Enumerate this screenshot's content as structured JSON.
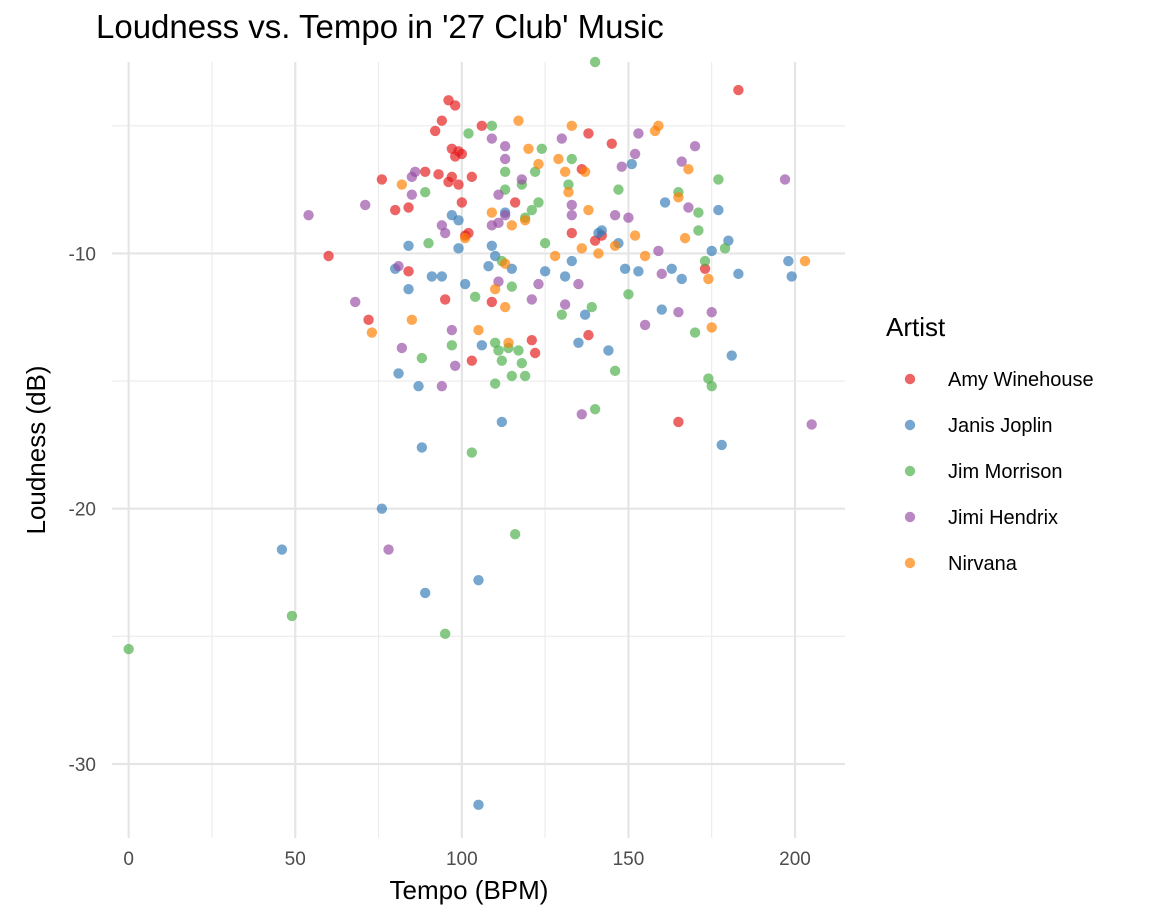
{
  "chart_data": {
    "type": "scatter",
    "title": "Loudness vs. Tempo in '27 Club' Music",
    "xlabel": "Tempo (BPM)",
    "ylabel": "Loudness (dB)",
    "xlim": [
      -5,
      215
    ],
    "ylim": [
      -32.9,
      -2.5
    ],
    "x_ticks": [
      0,
      50,
      100,
      150,
      200
    ],
    "y_ticks": [
      -30,
      -20,
      -10
    ],
    "grid": true,
    "legend": {
      "title": "Artist",
      "position": "right"
    },
    "series": [
      {
        "name": "Amy Winehouse",
        "color": "#E41A1C",
        "points": [
          [
            60,
            -10.1
          ],
          [
            72,
            -12.6
          ],
          [
            76,
            -7.1
          ],
          [
            80,
            -8.3
          ],
          [
            84,
            -8.2
          ],
          [
            84,
            -10.7
          ],
          [
            89,
            -6.8
          ],
          [
            92,
            -5.2
          ],
          [
            93,
            -6.9
          ],
          [
            94,
            -4.8
          ],
          [
            95,
            -11.8
          ],
          [
            96,
            -7.2
          ],
          [
            96,
            -4.0
          ],
          [
            97,
            -5.9
          ],
          [
            97,
            -7.0
          ],
          [
            98,
            -6.2
          ],
          [
            98,
            -4.2
          ],
          [
            99,
            -6.0
          ],
          [
            99,
            -7.3
          ],
          [
            100,
            -6.1
          ],
          [
            100,
            -8.0
          ],
          [
            101,
            -9.3
          ],
          [
            102,
            -9.2
          ],
          [
            103,
            -7.0
          ],
          [
            103,
            -14.2
          ],
          [
            106,
            -5.0
          ],
          [
            109,
            -11.9
          ],
          [
            116,
            -8.0
          ],
          [
            121,
            -13.4
          ],
          [
            122,
            -13.9
          ],
          [
            133,
            -9.2
          ],
          [
            136,
            -6.7
          ],
          [
            138,
            -13.2
          ],
          [
            138,
            -5.3
          ],
          [
            140,
            -9.5
          ],
          [
            142,
            -9.3
          ],
          [
            145,
            -5.7
          ],
          [
            173,
            -10.6
          ],
          [
            165,
            -16.6
          ],
          [
            183,
            -3.6
          ]
        ]
      },
      {
        "name": "Janis Joplin",
        "color": "#377EB8",
        "points": [
          [
            46,
            -21.6
          ],
          [
            76,
            -20.0
          ],
          [
            80,
            -10.6
          ],
          [
            81,
            -14.7
          ],
          [
            84,
            -9.7
          ],
          [
            84,
            -11.4
          ],
          [
            87,
            -15.2
          ],
          [
            88,
            -17.6
          ],
          [
            89,
            -23.3
          ],
          [
            91,
            -10.9
          ],
          [
            94,
            -10.9
          ],
          [
            97,
            -8.5
          ],
          [
            99,
            -9.8
          ],
          [
            99,
            -8.7
          ],
          [
            101,
            -11.2
          ],
          [
            105,
            -22.8
          ],
          [
            105,
            -31.6
          ],
          [
            106,
            -13.6
          ],
          [
            108,
            -10.5
          ],
          [
            109,
            -9.7
          ],
          [
            110,
            -10.1
          ],
          [
            112,
            -16.6
          ],
          [
            113,
            -8.4
          ],
          [
            115,
            -10.6
          ],
          [
            125,
            -10.7
          ],
          [
            131,
            -10.9
          ],
          [
            133,
            -10.3
          ],
          [
            135,
            -13.5
          ],
          [
            137,
            -12.4
          ],
          [
            141,
            -9.2
          ],
          [
            142,
            -9.1
          ],
          [
            144,
            -13.8
          ],
          [
            147,
            -9.6
          ],
          [
            149,
            -10.6
          ],
          [
            151,
            -6.5
          ],
          [
            153,
            -10.7
          ],
          [
            160,
            -12.2
          ],
          [
            161,
            -8.0
          ],
          [
            163,
            -10.6
          ],
          [
            166,
            -11.0
          ],
          [
            177,
            -8.3
          ],
          [
            178,
            -17.5
          ],
          [
            180,
            -9.5
          ],
          [
            181,
            -14.0
          ],
          [
            175,
            -9.9
          ],
          [
            183,
            -10.8
          ],
          [
            198,
            -10.3
          ],
          [
            199,
            -10.9
          ]
        ]
      },
      {
        "name": "Jim Morrison",
        "color": "#4DAF4A",
        "points": [
          [
            0,
            -25.5
          ],
          [
            49,
            -24.2
          ],
          [
            88,
            -14.1
          ],
          [
            89,
            -7.6
          ],
          [
            90,
            -9.6
          ],
          [
            95,
            -24.9
          ],
          [
            97,
            -13.6
          ],
          [
            102,
            -5.3
          ],
          [
            103,
            -17.8
          ],
          [
            104,
            -11.7
          ],
          [
            109,
            -5.0
          ],
          [
            110,
            -13.5
          ],
          [
            110,
            -15.1
          ],
          [
            111,
            -13.8
          ],
          [
            112,
            -10.3
          ],
          [
            112,
            -14.2
          ],
          [
            113,
            -7.5
          ],
          [
            113,
            -6.8
          ],
          [
            114,
            -13.7
          ],
          [
            115,
            -11.3
          ],
          [
            115,
            -14.8
          ],
          [
            116,
            -21.0
          ],
          [
            117,
            -13.8
          ],
          [
            118,
            -14.3
          ],
          [
            118,
            -7.3
          ],
          [
            119,
            -8.6
          ],
          [
            119,
            -14.8
          ],
          [
            121,
            -8.3
          ],
          [
            122,
            -6.8
          ],
          [
            123,
            -8.0
          ],
          [
            124,
            -5.9
          ],
          [
            125,
            -9.6
          ],
          [
            130,
            -12.4
          ],
          [
            132,
            -7.3
          ],
          [
            133,
            -6.3
          ],
          [
            139,
            -12.1
          ],
          [
            140,
            -16.1
          ],
          [
            140,
            -2.5
          ],
          [
            146,
            -14.6
          ],
          [
            147,
            -7.5
          ],
          [
            150,
            -11.6
          ],
          [
            165,
            -7.6
          ],
          [
            170,
            -13.1
          ],
          [
            171,
            -8.4
          ],
          [
            171,
            -9.1
          ],
          [
            173,
            -10.3
          ],
          [
            174,
            -14.9
          ],
          [
            175,
            -15.2
          ],
          [
            177,
            -7.1
          ],
          [
            179,
            -9.8
          ]
        ]
      },
      {
        "name": "Jimi Hendrix",
        "color": "#984EA3",
        "points": [
          [
            54,
            -8.5
          ],
          [
            68,
            -11.9
          ],
          [
            71,
            -8.1
          ],
          [
            78,
            -21.6
          ],
          [
            81,
            -10.5
          ],
          [
            82,
            -13.7
          ],
          [
            85,
            -7.0
          ],
          [
            85,
            -7.7
          ],
          [
            86,
            -6.8
          ],
          [
            94,
            -8.9
          ],
          [
            94,
            -15.2
          ],
          [
            95,
            -9.2
          ],
          [
            97,
            -13.0
          ],
          [
            98,
            -14.4
          ],
          [
            109,
            -5.5
          ],
          [
            109,
            -8.9
          ],
          [
            111,
            -7.7
          ],
          [
            111,
            -8.8
          ],
          [
            111,
            -11.1
          ],
          [
            113,
            -5.8
          ],
          [
            113,
            -6.3
          ],
          [
            113,
            -8.5
          ],
          [
            118,
            -7.1
          ],
          [
            121,
            -11.8
          ],
          [
            123,
            -11.2
          ],
          [
            130,
            -5.5
          ],
          [
            131,
            -12.0
          ],
          [
            133,
            -8.1
          ],
          [
            133,
            -8.5
          ],
          [
            135,
            -11.2
          ],
          [
            136,
            -16.3
          ],
          [
            146,
            -8.5
          ],
          [
            148,
            -6.6
          ],
          [
            150,
            -8.6
          ],
          [
            152,
            -6.1
          ],
          [
            153,
            -5.3
          ],
          [
            155,
            -12.8
          ],
          [
            159,
            -9.9
          ],
          [
            160,
            -10.8
          ],
          [
            165,
            -12.3
          ],
          [
            166,
            -6.4
          ],
          [
            168,
            -8.2
          ],
          [
            170,
            -5.8
          ],
          [
            175,
            -12.3
          ],
          [
            197,
            -7.1
          ],
          [
            205,
            -16.7
          ]
        ]
      },
      {
        "name": "Nirvana",
        "color": "#FF7F00",
        "points": [
          [
            73,
            -13.1
          ],
          [
            82,
            -7.3
          ],
          [
            85,
            -12.6
          ],
          [
            101,
            -9.4
          ],
          [
            105,
            -13.0
          ],
          [
            109,
            -8.4
          ],
          [
            110,
            -11.4
          ],
          [
            113,
            -10.4
          ],
          [
            113,
            -12.1
          ],
          [
            114,
            -13.5
          ],
          [
            115,
            -8.9
          ],
          [
            117,
            -4.8
          ],
          [
            119,
            -8.7
          ],
          [
            120,
            -5.9
          ],
          [
            123,
            -6.5
          ],
          [
            128,
            -10.1
          ],
          [
            129,
            -6.3
          ],
          [
            131,
            -6.8
          ],
          [
            132,
            -7.6
          ],
          [
            133,
            -5.0
          ],
          [
            136,
            -9.8
          ],
          [
            137,
            -6.8
          ],
          [
            138,
            -8.3
          ],
          [
            141,
            -10.0
          ],
          [
            146,
            -9.7
          ],
          [
            152,
            -9.3
          ],
          [
            155,
            -10.1
          ],
          [
            158,
            -5.2
          ],
          [
            159,
            -5.0
          ],
          [
            165,
            -7.8
          ],
          [
            167,
            -9.4
          ],
          [
            168,
            -6.7
          ],
          [
            174,
            -11.0
          ],
          [
            175,
            -12.9
          ],
          [
            203,
            -10.3
          ]
        ]
      }
    ]
  }
}
